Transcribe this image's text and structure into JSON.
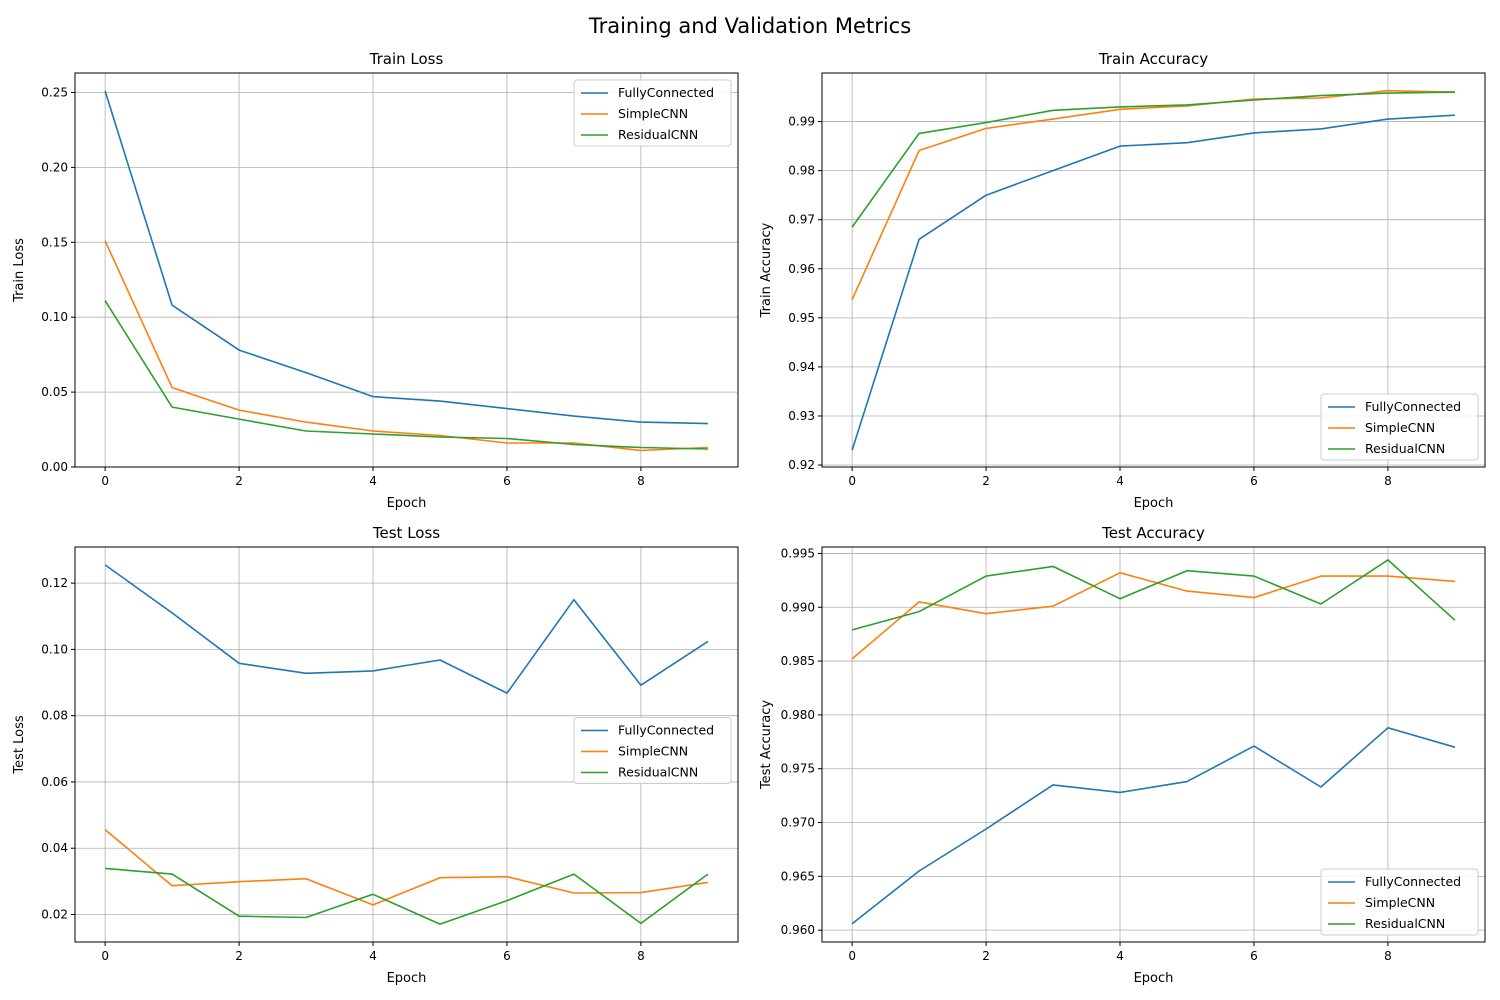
{
  "figure": {
    "title": "Training and Validation Metrics"
  },
  "colors": {
    "FullyConnected": "#1f77b4",
    "SimpleCNN": "#ff7f0e",
    "ResidualCNN": "#2ca02c",
    "grid": "#b0b0b0"
  },
  "chart_data": [
    {
      "type": "line",
      "title": "Train Loss",
      "xlabel": "Epoch",
      "ylabel": "Train Loss",
      "x": [
        0,
        1,
        2,
        3,
        4,
        5,
        6,
        7,
        8,
        9
      ],
      "xticks": [
        0,
        2,
        4,
        6,
        8
      ],
      "xlim": [
        -0.45,
        9.45
      ],
      "yticks": [
        0.0,
        0.05,
        0.1,
        0.15,
        0.2,
        0.25
      ],
      "ylim": [
        0.0,
        0.263
      ],
      "tick_decimals": 2,
      "grid": true,
      "legend": "upper-right",
      "series": [
        {
          "name": "FullyConnected",
          "values": [
            0.251,
            0.108,
            0.078,
            0.063,
            0.047,
            0.044,
            0.039,
            0.034,
            0.03,
            0.029
          ]
        },
        {
          "name": "SimpleCNN",
          "values": [
            0.151,
            0.053,
            0.038,
            0.03,
            0.024,
            0.021,
            0.016,
            0.016,
            0.011,
            0.013
          ]
        },
        {
          "name": "ResidualCNN",
          "values": [
            0.111,
            0.04,
            0.032,
            0.024,
            0.022,
            0.02,
            0.019,
            0.015,
            0.013,
            0.012
          ]
        }
      ]
    },
    {
      "type": "line",
      "title": "Train Accuracy",
      "xlabel": "Epoch",
      "ylabel": "Train Accuracy",
      "x": [
        0,
        1,
        2,
        3,
        4,
        5,
        6,
        7,
        8,
        9
      ],
      "xticks": [
        0,
        2,
        4,
        6,
        8
      ],
      "xlim": [
        -0.45,
        9.45
      ],
      "yticks": [
        0.92,
        0.93,
        0.94,
        0.95,
        0.96,
        0.97,
        0.98,
        0.99
      ],
      "ylim": [
        0.9196,
        0.9999
      ],
      "tick_decimals": 2,
      "grid": true,
      "legend": "lower-right",
      "series": [
        {
          "name": "FullyConnected",
          "values": [
            0.923,
            0.966,
            0.975,
            0.98,
            0.985,
            0.9857,
            0.9877,
            0.9885,
            0.9905,
            0.9913
          ]
        },
        {
          "name": "SimpleCNN",
          "values": [
            0.9537,
            0.9841,
            0.9886,
            0.9905,
            0.9925,
            0.9932,
            0.9946,
            0.9948,
            0.9963,
            0.996
          ]
        },
        {
          "name": "ResidualCNN",
          "values": [
            0.9685,
            0.9876,
            0.9898,
            0.9923,
            0.993,
            0.9934,
            0.9944,
            0.9953,
            0.9958,
            0.996
          ]
        }
      ]
    },
    {
      "type": "line",
      "title": "Test Loss",
      "xlabel": "Epoch",
      "ylabel": "Test Loss",
      "x": [
        0,
        1,
        2,
        3,
        4,
        5,
        6,
        7,
        8,
        9
      ],
      "xticks": [
        0,
        2,
        4,
        6,
        8
      ],
      "xlim": [
        -0.45,
        9.45
      ],
      "yticks": [
        0.02,
        0.04,
        0.06,
        0.08,
        0.1,
        0.12
      ],
      "ylim": [
        0.0117,
        0.1309
      ],
      "tick_decimals": 2,
      "grid": true,
      "legend": "center-right",
      "series": [
        {
          "name": "FullyConnected",
          "values": [
            0.1255,
            0.111,
            0.0958,
            0.0928,
            0.0935,
            0.0968,
            0.0868,
            0.115,
            0.0892,
            0.1024
          ]
        },
        {
          "name": "SimpleCNN",
          "values": [
            0.0456,
            0.0287,
            0.0299,
            0.0308,
            0.0229,
            0.0311,
            0.0314,
            0.0265,
            0.0266,
            0.0297
          ]
        },
        {
          "name": "ResidualCNN",
          "values": [
            0.0339,
            0.0322,
            0.0195,
            0.0191,
            0.0261,
            0.0171,
            0.0242,
            0.0322,
            0.0173,
            0.0322
          ]
        }
      ]
    },
    {
      "type": "line",
      "title": "Test Accuracy",
      "xlabel": "Epoch",
      "ylabel": "Test Accuracy",
      "x": [
        0,
        1,
        2,
        3,
        4,
        5,
        6,
        7,
        8,
        9
      ],
      "xticks": [
        0,
        2,
        4,
        6,
        8
      ],
      "xlim": [
        -0.45,
        9.45
      ],
      "yticks": [
        0.96,
        0.965,
        0.97,
        0.975,
        0.98,
        0.985,
        0.99,
        0.995
      ],
      "ylim": [
        0.9589,
        0.9956
      ],
      "tick_decimals": 3,
      "grid": true,
      "legend": "lower-right",
      "series": [
        {
          "name": "FullyConnected",
          "values": [
            0.9606,
            0.9655,
            0.9694,
            0.9735,
            0.9728,
            0.9738,
            0.9771,
            0.9733,
            0.9788,
            0.977
          ]
        },
        {
          "name": "SimpleCNN",
          "values": [
            0.9852,
            0.9905,
            0.9894,
            0.9901,
            0.9932,
            0.9915,
            0.9909,
            0.9929,
            0.9929,
            0.9924
          ]
        },
        {
          "name": "ResidualCNN",
          "values": [
            0.9879,
            0.9896,
            0.9929,
            0.9938,
            0.9908,
            0.9934,
            0.9929,
            0.9903,
            0.9944,
            0.9888
          ]
        }
      ]
    }
  ]
}
